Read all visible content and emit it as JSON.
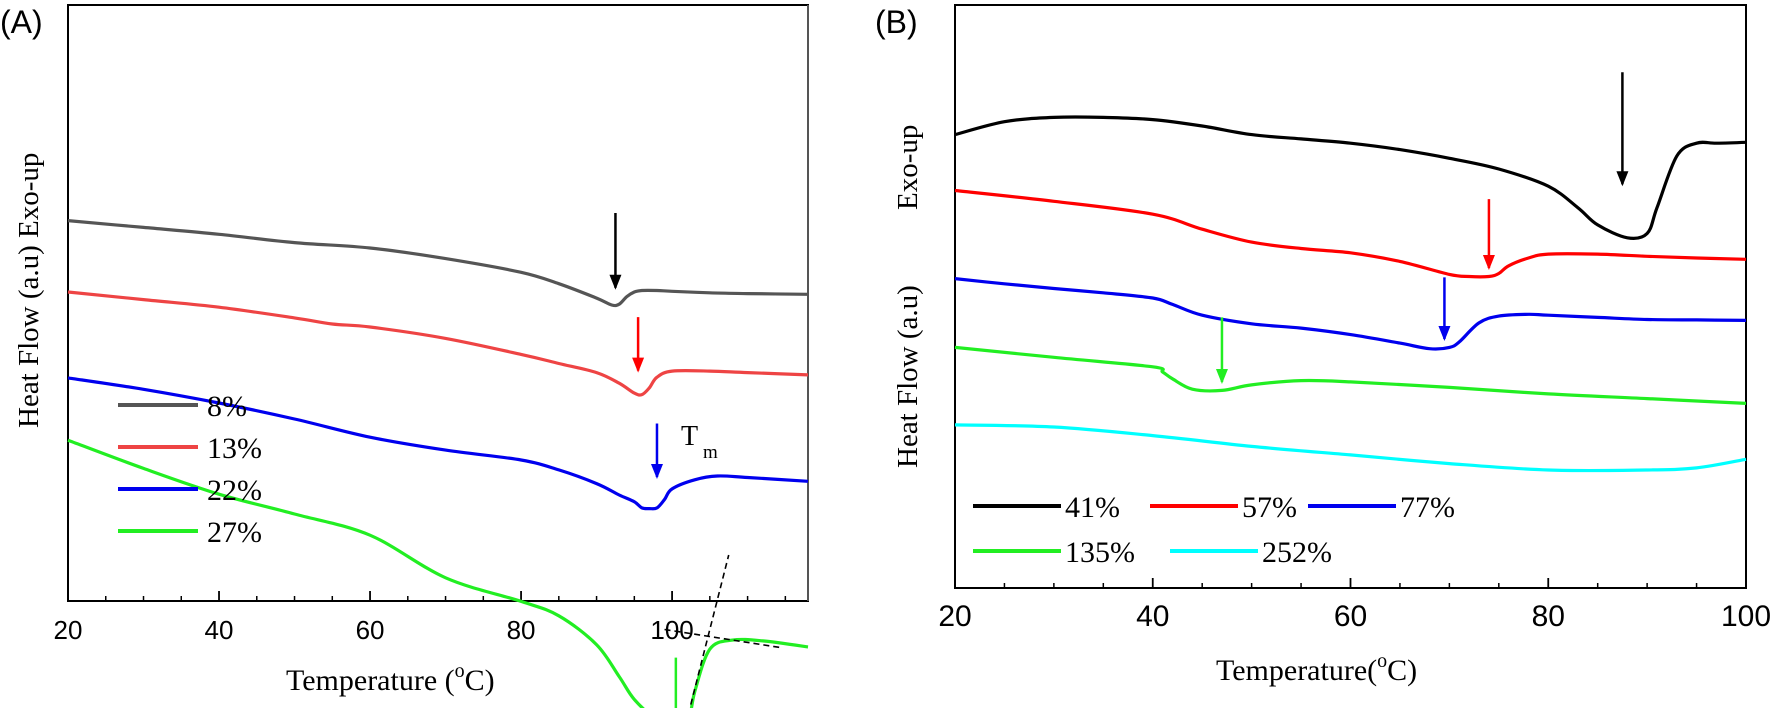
{
  "colors": {
    "black": "#000000",
    "gray": "#555555",
    "red": "#ee4444",
    "pure_red": "#ff0000",
    "blue": "#0000ee",
    "green": "#22ee22",
    "cyan": "#00ffff"
  },
  "chart_data": [
    {
      "type": "line",
      "panel_label": "(A)",
      "xlabel_main": "Temperature (",
      "xlabel_sup": "o",
      "xlabel_end": "C)",
      "ylabel": "Heat Flow (a.u)  Exo-up",
      "xlim": [
        20,
        118
      ],
      "xticks": [
        20,
        40,
        60,
        80,
        100
      ],
      "tm_label": "T",
      "tm_sub": "m",
      "series": [
        {
          "name": "8%",
          "color": "#555555",
          "x": [
            20,
            30,
            40,
            50,
            60,
            70,
            80,
            85,
            90,
            92,
            93,
            94,
            95,
            96,
            98,
            100,
            105,
            110,
            118
          ],
          "y": [
            4.4,
            4.31,
            4.22,
            4.11,
            4.04,
            3.9,
            3.72,
            3.57,
            3.38,
            3.29,
            3.3,
            3.4,
            3.46,
            3.48,
            3.48,
            3.47,
            3.45,
            3.44,
            3.43
          ]
        },
        {
          "name": "13%",
          "color": "#ee4444",
          "x": [
            20,
            30,
            40,
            50,
            55,
            60,
            70,
            80,
            85,
            90,
            93,
            95,
            96,
            97,
            98,
            100,
            105,
            110,
            118
          ],
          "y": [
            3.46,
            3.36,
            3.26,
            3.12,
            3.04,
            3.0,
            2.85,
            2.64,
            2.52,
            2.4,
            2.26,
            2.13,
            2.11,
            2.2,
            2.34,
            2.42,
            2.42,
            2.4,
            2.37
          ]
        },
        {
          "name": "22%",
          "color": "#0000ee",
          "x": [
            20,
            30,
            40,
            50,
            60,
            70,
            80,
            85,
            90,
            93,
            95,
            96,
            97,
            98,
            99,
            100,
            103,
            106,
            110,
            118
          ],
          "y": [
            2.33,
            2.18,
            2.0,
            1.79,
            1.55,
            1.38,
            1.25,
            1.12,
            0.94,
            0.79,
            0.7,
            0.62,
            0.61,
            0.62,
            0.73,
            0.87,
            0.99,
            1.04,
            1.02,
            0.97
          ]
        },
        {
          "name": "27%",
          "color": "#22ee22",
          "x": [
            20,
            30,
            40,
            50,
            60,
            70,
            80,
            85,
            90,
            93,
            95,
            98,
            100,
            102,
            103,
            105,
            108,
            112,
            118
          ],
          "y": [
            1.51,
            1.14,
            0.8,
            0.54,
            0.26,
            -0.3,
            -0.61,
            -0.8,
            -1.18,
            -1.6,
            -1.9,
            -2.18,
            -2.3,
            -2.25,
            -1.8,
            -1.24,
            -1.12,
            -1.13,
            -1.21
          ]
        }
      ],
      "arrows": [
        {
          "color": "#000000",
          "x": 92.5,
          "y_top": 4.5,
          "y_tip": 3.49
        },
        {
          "color": "#ff0000",
          "x": 95.5,
          "y_top": 3.13,
          "y_tip": 2.4
        },
        {
          "color": "#0000ee",
          "x": 98.0,
          "y_top": 1.73,
          "y_tip": 1.0
        },
        {
          "color": "#22ee22",
          "x": 100.5,
          "y_top": -1.35,
          "y_tip": -2.23
        }
      ],
      "tangents": [
        {
          "x1": 101.5,
          "y1": -2.35,
          "x2": 107.5,
          "y2": 0.0
        },
        {
          "x1": 99.0,
          "y1": -0.98,
          "x2": 114.5,
          "y2": -1.22
        }
      ]
    },
    {
      "type": "line",
      "panel_label": "(B)",
      "xlabel_main": "Temperature(",
      "xlabel_sup": "o",
      "xlabel_end": "C)",
      "ylabel_1": "Heat Flow (a.u)",
      "ylabel_2": "Exo-up",
      "xlim": [
        20,
        100
      ],
      "xticks": [
        20,
        40,
        60,
        80,
        100
      ],
      "series": [
        {
          "name": "41%",
          "color": "#000000",
          "x": [
            20,
            25,
            30,
            35,
            40,
            45,
            50,
            55,
            60,
            65,
            70,
            75,
            80,
            83,
            85,
            88,
            90,
            91,
            93,
            95,
            97,
            100
          ],
          "y": [
            6.8,
            7.1,
            7.2,
            7.2,
            7.15,
            7.0,
            6.8,
            6.7,
            6.6,
            6.45,
            6.25,
            6.0,
            5.6,
            5.1,
            4.7,
            4.4,
            4.5,
            5.1,
            6.3,
            6.6,
            6.6,
            6.62
          ]
        },
        {
          "name": "57%",
          "color": "#ff0000",
          "x": [
            20,
            30,
            40,
            45,
            50,
            55,
            60,
            65,
            70,
            72,
            74,
            75,
            76,
            78,
            80,
            85,
            90,
            95,
            100
          ],
          "y": [
            5.5,
            5.25,
            4.95,
            4.6,
            4.3,
            4.15,
            4.05,
            3.85,
            3.55,
            3.5,
            3.5,
            3.57,
            3.75,
            3.93,
            4.02,
            4.02,
            3.97,
            3.93,
            3.9
          ]
        },
        {
          "name": "77%",
          "color": "#0000ee",
          "x": [
            20,
            25,
            30,
            35,
            40,
            42,
            45,
            50,
            55,
            60,
            65,
            68,
            70,
            71,
            73,
            75,
            78,
            80,
            85,
            90,
            95,
            100
          ],
          "y": [
            3.45,
            3.33,
            3.22,
            3.12,
            3.0,
            2.85,
            2.6,
            2.4,
            2.3,
            2.15,
            1.95,
            1.82,
            1.85,
            1.98,
            2.42,
            2.58,
            2.62,
            2.6,
            2.55,
            2.5,
            2.49,
            2.48
          ]
        },
        {
          "name": "135%",
          "color": "#22ee22",
          "x": [
            20,
            30,
            40,
            41,
            42,
            44,
            47,
            50,
            55,
            60,
            70,
            80,
            90,
            100
          ],
          "y": [
            1.85,
            1.62,
            1.4,
            1.28,
            1.12,
            0.88,
            0.85,
            0.98,
            1.08,
            1.05,
            0.92,
            0.77,
            0.66,
            0.55
          ]
        },
        {
          "name": "252%",
          "color": "#00ffff",
          "x": [
            20,
            30,
            40,
            50,
            60,
            70,
            80,
            90,
            95,
            100
          ],
          "y": [
            0.05,
            0.0,
            -0.2,
            -0.45,
            -0.65,
            -0.85,
            -1.0,
            -1.0,
            -0.95,
            -0.75
          ]
        }
      ],
      "arrows": [
        {
          "color": "#000000",
          "x": 87.5,
          "y_top": 8.25,
          "y_tip": 5.6
        },
        {
          "color": "#ff0000",
          "x": 74.0,
          "y_top": 5.3,
          "y_tip": 3.65
        },
        {
          "color": "#0000ee",
          "x": 69.5,
          "y_top": 3.48,
          "y_tip": 2.0
        },
        {
          "color": "#22ee22",
          "x": 47.0,
          "y_top": 2.55,
          "y_tip": 1.0
        }
      ]
    }
  ]
}
